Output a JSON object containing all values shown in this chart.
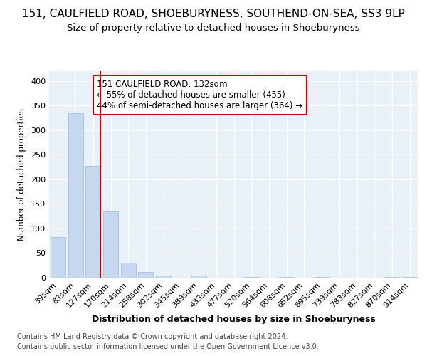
{
  "title1": "151, CAULFIELD ROAD, SHOEBURYNESS, SOUTHEND-ON-SEA, SS3 9LP",
  "title2": "Size of property relative to detached houses in Shoeburyness",
  "xlabel": "Distribution of detached houses by size in Shoeburyness",
  "ylabel": "Number of detached properties",
  "categories": [
    "39sqm",
    "83sqm",
    "127sqm",
    "170sqm",
    "214sqm",
    "258sqm",
    "302sqm",
    "345sqm",
    "389sqm",
    "433sqm",
    "477sqm",
    "520sqm",
    "564sqm",
    "608sqm",
    "652sqm",
    "695sqm",
    "739sqm",
    "783sqm",
    "827sqm",
    "870sqm",
    "914sqm"
  ],
  "values": [
    83,
    335,
    228,
    135,
    30,
    11,
    5,
    0,
    4,
    0,
    0,
    2,
    0,
    2,
    0,
    2,
    0,
    0,
    0,
    2,
    2
  ],
  "bar_color": "#c5d8f0",
  "bar_edge_color": "#a0bcd8",
  "vline_color": "#cc0000",
  "annotation_text": "151 CAULFIELD ROAD: 132sqm\n← 55% of detached houses are smaller (455)\n44% of semi-detached houses are larger (364) →",
  "annotation_box_color": "white",
  "annotation_box_edge": "#cc0000",
  "ylim": [
    0,
    420
  ],
  "yticks": [
    0,
    50,
    100,
    150,
    200,
    250,
    300,
    350,
    400
  ],
  "background_color": "#e8f0f8",
  "grid_color": "#ffffff",
  "footer1": "Contains HM Land Registry data © Crown copyright and database right 2024.",
  "footer2": "Contains public sector information licensed under the Open Government Licence v3.0.",
  "title1_fontsize": 11,
  "title2_fontsize": 9.5,
  "xlabel_fontsize": 9,
  "ylabel_fontsize": 8.5,
  "tick_fontsize": 8,
  "annot_fontsize": 8.5,
  "footer_fontsize": 7
}
